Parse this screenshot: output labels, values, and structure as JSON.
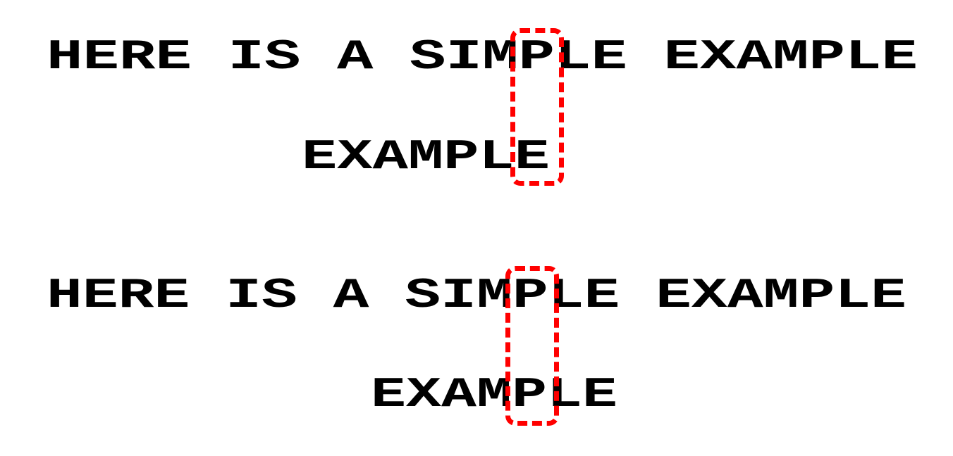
{
  "panels": [
    {
      "sentence": "HERE IS A SIMPLE EXAMPLE",
      "word": "EXAMPLE"
    },
    {
      "sentence": "HERE IS A SIMPLE EXAMPLE",
      "word": "EXAMPLE"
    }
  ],
  "colors": {
    "text": "#000000",
    "highlight": "#ff0000",
    "background": "#ffffff"
  }
}
